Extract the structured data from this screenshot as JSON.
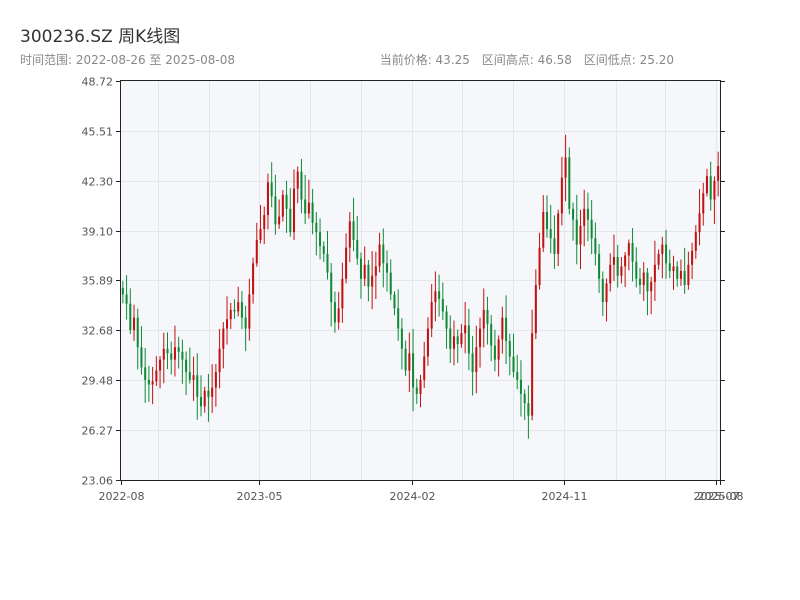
{
  "header": {
    "title": "300236.SZ 周K线图",
    "subtitle": "时间范围: 2022-08-26 至 2025-08-08",
    "current_price": "当前价格: 43.25",
    "high": "区间高点: 46.58",
    "low": "区间低点: 25.20"
  },
  "chart_data": {
    "type": "candlestick",
    "title": "300236.SZ 周K线图",
    "x_start": "2022-08-26",
    "x_end": "2025-08-08",
    "ylim": [
      23.06,
      48.72
    ],
    "yticks": [
      "23.06",
      "26.27",
      "29.48",
      "32.68",
      "35.89",
      "39.10",
      "42.30",
      "45.51",
      "48.72"
    ],
    "xticks": [
      "2022-08",
      "2023-05",
      "2024-02",
      "2024-11",
      "2025-07",
      "2025-08"
    ],
    "grid": true,
    "up_color": "#c41010",
    "down_color": "#118a38",
    "close": [
      35.0,
      34.4,
      32.7,
      33.5,
      31.6,
      30.3,
      29.5,
      29.2,
      29.4,
      30.1,
      30.8,
      31.5,
      31.2,
      30.8,
      31.6,
      31.3,
      30.8,
      30.0,
      29.5,
      29.8,
      28.4,
      27.8,
      28.8,
      28.4,
      29.0,
      30.0,
      31.5,
      32.8,
      33.4,
      34.0,
      33.9,
      34.5,
      33.5,
      32.8,
      35.0,
      37.0,
      38.5,
      39.2,
      40.1,
      42.2,
      41.3,
      39.5,
      40.0,
      41.4,
      40.5,
      39.0,
      41.8,
      42.9,
      41.1,
      40.2,
      40.9,
      39.6,
      39.0,
      38.1,
      37.6,
      36.4,
      34.5,
      33.2,
      34.1,
      36.0,
      38.0,
      39.7,
      38.5,
      37.3,
      36.0,
      36.9,
      35.5,
      36.2,
      36.8,
      38.2,
      37.0,
      36.4,
      35.0,
      34.1,
      32.8,
      31.5,
      30.1,
      31.2,
      29.0,
      28.6,
      29.5,
      31.0,
      32.8,
      34.5,
      35.2,
      34.7,
      33.9,
      32.8,
      31.5,
      32.3,
      31.8,
      32.5,
      33.0,
      31.2,
      30.0,
      31.6,
      32.8,
      34.0,
      33.1,
      31.7,
      30.8,
      32.1,
      33.5,
      32.0,
      31.0,
      30.0,
      29.5,
      28.6,
      28.0,
      27.2,
      32.5,
      35.6,
      38.0,
      40.3,
      39.2,
      38.6,
      37.6,
      40.2,
      42.5,
      43.8,
      40.5,
      39.8,
      38.2,
      39.4,
      40.5,
      39.8,
      38.6,
      37.6,
      36.0,
      34.5,
      35.7,
      36.9,
      37.4,
      36.2,
      36.8,
      37.5,
      38.3,
      37.1,
      36.0,
      35.6,
      36.4,
      35.2,
      35.8,
      36.9,
      37.6,
      38.2,
      37.0,
      36.5,
      36.8,
      36.0,
      36.5,
      35.6,
      36.9,
      37.8,
      39.0,
      40.2,
      41.5,
      42.6,
      41.1,
      42.3,
      43.25
    ]
  }
}
